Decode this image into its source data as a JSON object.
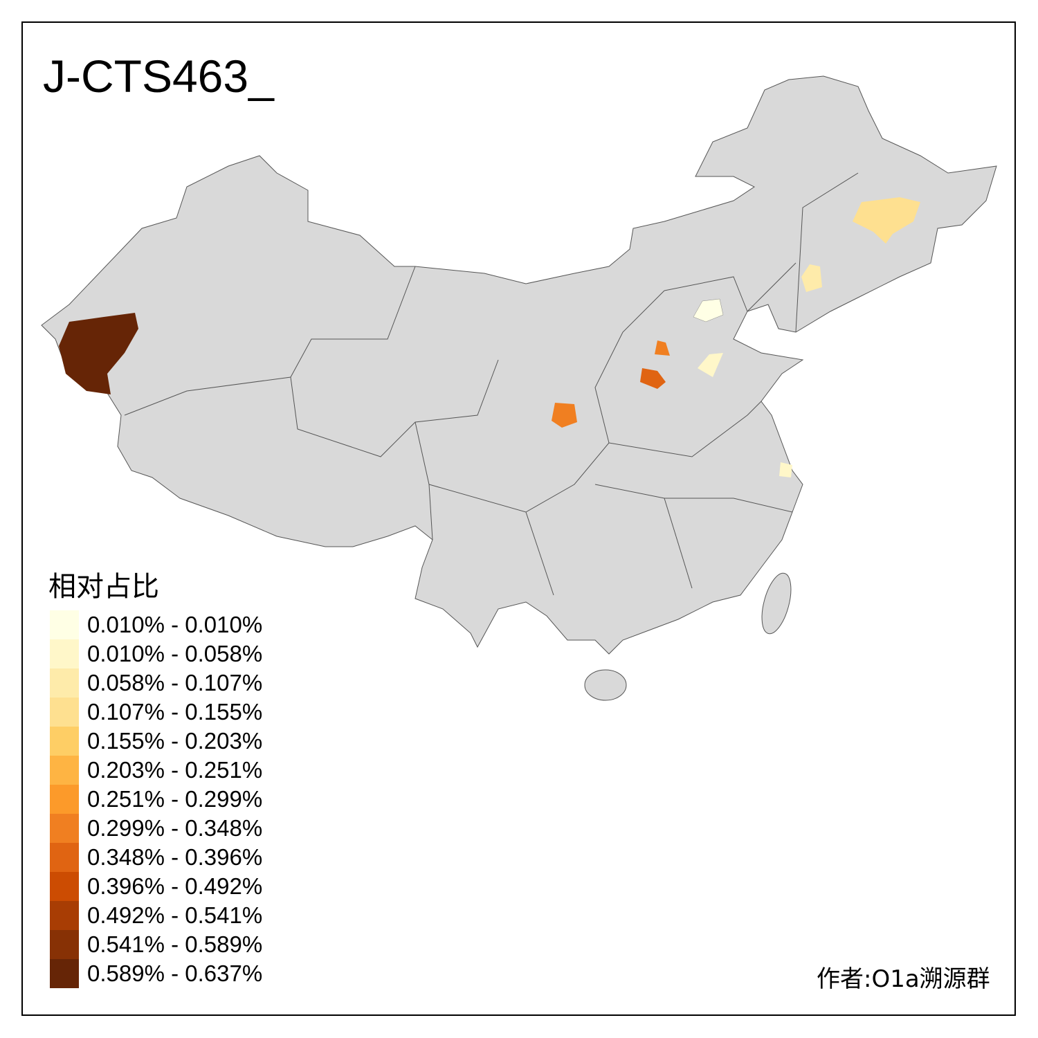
{
  "title": "J-CTS463_",
  "legend": {
    "title": "相对占比",
    "items": [
      {
        "label": "0.010% - 0.010%",
        "color": "#FFFFE5"
      },
      {
        "label": "0.010% - 0.058%",
        "color": "#FFF7C9"
      },
      {
        "label": "0.058% - 0.107%",
        "color": "#FEEBAA"
      },
      {
        "label": "0.107% - 0.155%",
        "color": "#FEE090"
      },
      {
        "label": "0.155% - 0.203%",
        "color": "#FECE65"
      },
      {
        "label": "0.203% - 0.251%",
        "color": "#FEB443"
      },
      {
        "label": "0.251% - 0.299%",
        "color": "#FC9A2A"
      },
      {
        "label": "0.299% - 0.348%",
        "color": "#F07F21"
      },
      {
        "label": "0.348% - 0.396%",
        "color": "#E06412"
      },
      {
        "label": "0.396% - 0.492%",
        "color": "#CC4C02"
      },
      {
        "label": "0.492% - 0.541%",
        "color": "#A83D04"
      },
      {
        "label": "0.541% - 0.589%",
        "color": "#873105"
      },
      {
        "label": "0.589% - 0.637%",
        "color": "#662506"
      }
    ]
  },
  "author": "作者:O1a溯源群",
  "map_colors": {
    "base": "#D9D9D9",
    "border": "#555555"
  }
}
